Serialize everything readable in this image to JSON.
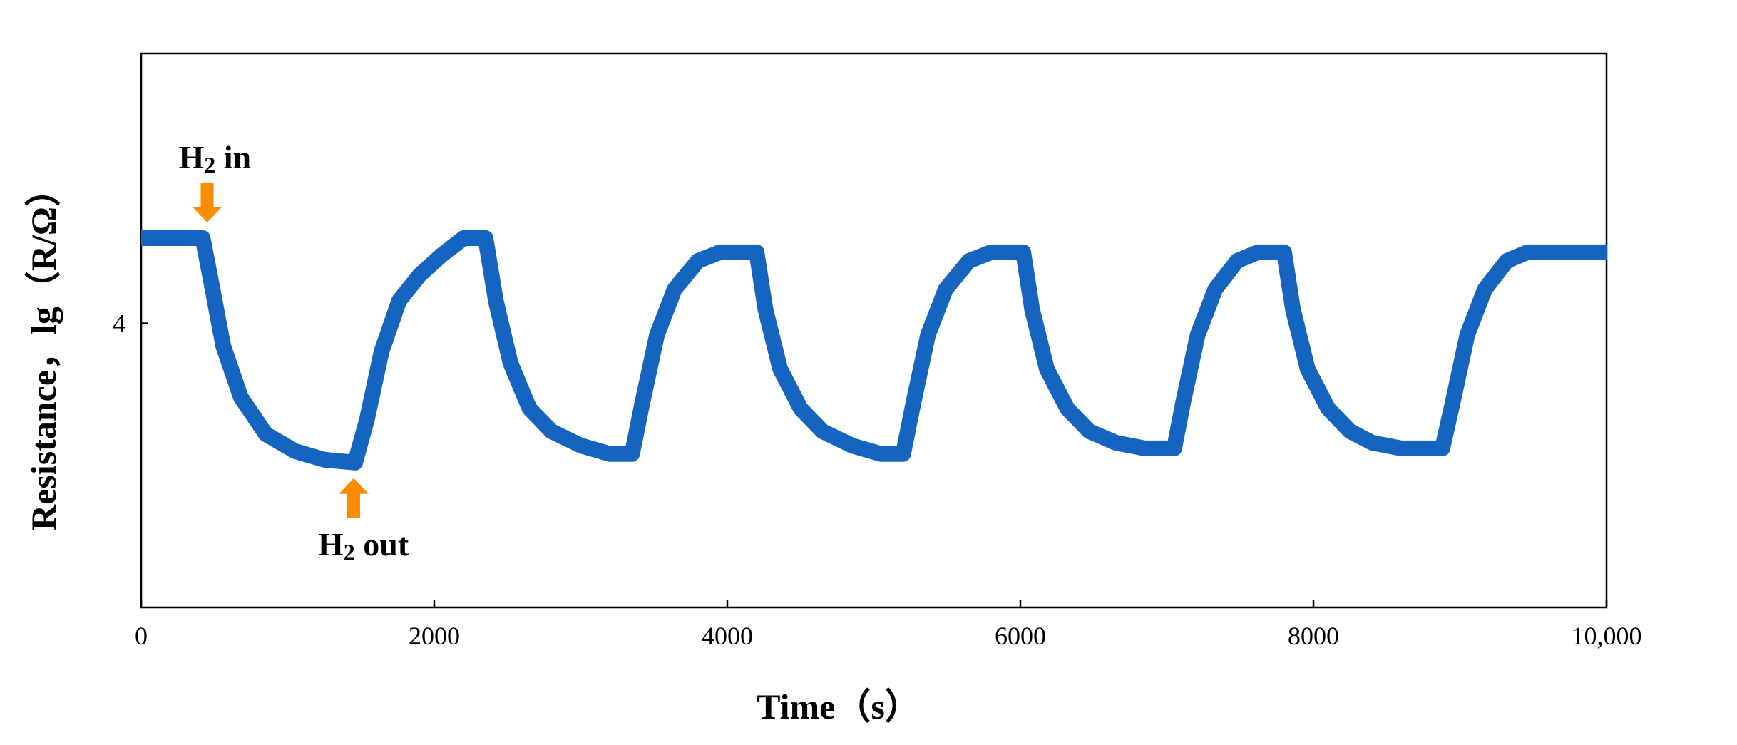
{
  "chart_data": {
    "type": "line",
    "title": "",
    "xlabel": "Time（s）",
    "ylabel": "Resistance，lg（R/Ω）",
    "xlim": [
      0,
      10000
    ],
    "ylim": [
      3.0,
      4.95
    ],
    "x_ticks": [
      {
        "value": 0,
        "label": "0"
      },
      {
        "value": 2000,
        "label": "2000"
      },
      {
        "value": 4000,
        "label": "4000"
      },
      {
        "value": 6000,
        "label": "6000"
      },
      {
        "value": 8000,
        "label": "8000"
      },
      {
        "value": 10000,
        "label": "10,000"
      }
    ],
    "y_ticks": [
      {
        "value": 4,
        "label": "4"
      }
    ],
    "grid": false,
    "legend": "none",
    "series": [
      {
        "color": "#1565c0",
        "points": [
          [
            0,
            4.3
          ],
          [
            420,
            4.3
          ],
          [
            480,
            4.14
          ],
          [
            560,
            3.92
          ],
          [
            680,
            3.74
          ],
          [
            850,
            3.61
          ],
          [
            1050,
            3.55
          ],
          [
            1250,
            3.52
          ],
          [
            1460,
            3.51
          ],
          [
            1540,
            3.66
          ],
          [
            1640,
            3.9
          ],
          [
            1760,
            4.08
          ],
          [
            1900,
            4.17
          ],
          [
            2050,
            4.24
          ],
          [
            2200,
            4.3
          ],
          [
            2350,
            4.3
          ],
          [
            2420,
            4.08
          ],
          [
            2520,
            3.86
          ],
          [
            2650,
            3.7
          ],
          [
            2800,
            3.62
          ],
          [
            3000,
            3.57
          ],
          [
            3200,
            3.54
          ],
          [
            3350,
            3.54
          ],
          [
            3420,
            3.72
          ],
          [
            3520,
            3.96
          ],
          [
            3640,
            4.12
          ],
          [
            3800,
            4.22
          ],
          [
            3950,
            4.25
          ],
          [
            4200,
            4.25
          ],
          [
            4260,
            4.05
          ],
          [
            4360,
            3.84
          ],
          [
            4500,
            3.7
          ],
          [
            4650,
            3.62
          ],
          [
            4850,
            3.57
          ],
          [
            5050,
            3.54
          ],
          [
            5200,
            3.54
          ],
          [
            5270,
            3.72
          ],
          [
            5370,
            3.96
          ],
          [
            5490,
            4.12
          ],
          [
            5650,
            4.22
          ],
          [
            5800,
            4.25
          ],
          [
            6020,
            4.25
          ],
          [
            6080,
            4.05
          ],
          [
            6180,
            3.84
          ],
          [
            6320,
            3.7
          ],
          [
            6470,
            3.62
          ],
          [
            6650,
            3.58
          ],
          [
            6850,
            3.56
          ],
          [
            7050,
            3.56
          ],
          [
            7110,
            3.72
          ],
          [
            7210,
            3.96
          ],
          [
            7330,
            4.12
          ],
          [
            7480,
            4.22
          ],
          [
            7620,
            4.25
          ],
          [
            7800,
            4.25
          ],
          [
            7860,
            4.05
          ],
          [
            7960,
            3.84
          ],
          [
            8100,
            3.7
          ],
          [
            8250,
            3.62
          ],
          [
            8400,
            3.58
          ],
          [
            8600,
            3.56
          ],
          [
            8880,
            3.56
          ],
          [
            8950,
            3.72
          ],
          [
            9050,
            3.96
          ],
          [
            9170,
            4.12
          ],
          [
            9320,
            4.22
          ],
          [
            9460,
            4.25
          ],
          [
            10000,
            4.25
          ]
        ]
      }
    ],
    "annotations": [
      {
        "main": "H",
        "sub": "2",
        "rest": " in",
        "x": 450,
        "y": 4.3,
        "direction": "down",
        "color": "#ff8c00"
      },
      {
        "main": "H",
        "sub": "2",
        "rest": " out",
        "x": 1450,
        "y": 3.51,
        "direction": "up",
        "color": "#ff8c00"
      }
    ]
  }
}
